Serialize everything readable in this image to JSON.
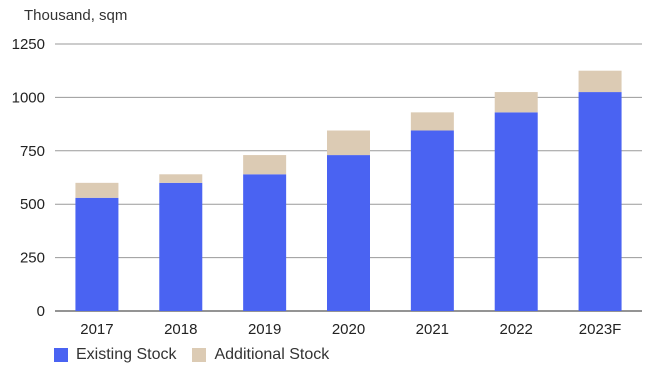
{
  "chart_data": {
    "type": "bar",
    "stacked": true,
    "unit_label": "Thousand, sqm",
    "categories": [
      "2017",
      "2018",
      "2019",
      "2020",
      "2021",
      "2022",
      "2023F"
    ],
    "series": [
      {
        "name": "Existing Stock",
        "color": "#4a63f2",
        "values": [
          530,
          600,
          640,
          730,
          845,
          930,
          1025
        ]
      },
      {
        "name": "Additional Stock",
        "color": "#dccbb4",
        "values": [
          70,
          40,
          90,
          115,
          85,
          95,
          100
        ]
      }
    ],
    "ylim": [
      0,
      1250
    ],
    "yticks": [
      0,
      250,
      500,
      750,
      1000,
      1250
    ],
    "grid": true,
    "legend_position": "bottom-left"
  }
}
